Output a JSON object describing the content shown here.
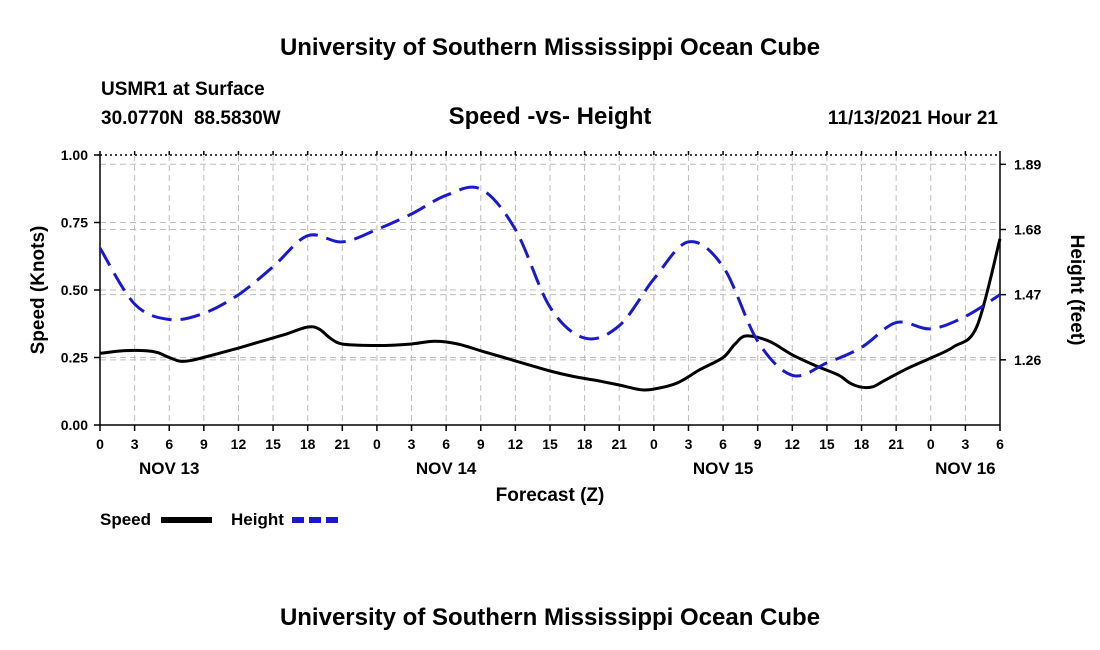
{
  "header": {
    "title": "University of Southern Mississippi Ocean Cube",
    "station": "USMR1 at Surface",
    "coords": "30.0770N  88.5830W",
    "subtitle": "Speed -vs- Height",
    "datetime": "11/13/2021 Hour 21"
  },
  "footer": {
    "title": "University of Southern Mississippi Ocean Cube"
  },
  "chart_data": {
    "type": "line",
    "title": "Speed -vs- Height",
    "xlabel": "Forecast (Z)",
    "ylabel_left": "Speed (Knots)",
    "ylabel_right": "Height (feet)",
    "x_hours_range": [
      0,
      78
    ],
    "x_tick_labels": [
      "0",
      "3",
      "6",
      "9",
      "12",
      "15",
      "18",
      "21",
      "0",
      "3",
      "6",
      "9",
      "12",
      "15",
      "18",
      "21",
      "0",
      "3",
      "6",
      "9",
      "12",
      "15",
      "18",
      "21",
      "0",
      "3",
      "6"
    ],
    "day_labels": [
      {
        "label": "NOV 13",
        "hour": 6
      },
      {
        "label": "NOV 14",
        "hour": 30
      },
      {
        "label": "NOV 15",
        "hour": 54
      },
      {
        "label": "NOV 16",
        "hour": 75
      }
    ],
    "left_axis": {
      "range": [
        0,
        1.0
      ],
      "ticks": [
        0.0,
        0.25,
        0.5,
        0.75,
        1.0
      ],
      "tick_labels": [
        "0.00",
        "0.25",
        "0.50",
        "0.75",
        "1.00"
      ]
    },
    "right_axis": {
      "range": [
        1.05,
        1.92
      ],
      "ticks": [
        1.26,
        1.47,
        1.68,
        1.89
      ],
      "tick_labels": [
        "1.26",
        "1.47",
        "1.68",
        "1.89"
      ]
    },
    "grid": true,
    "legend": [
      {
        "name": "Speed",
        "color": "#000000",
        "dash": "solid"
      },
      {
        "name": "Height",
        "color": "#1a1acc",
        "dash": "dashed"
      }
    ],
    "series": [
      {
        "name": "Speed",
        "axis": "left",
        "color": "#000000",
        "x": [
          0,
          2,
          4,
          5,
          6,
          7,
          8,
          10,
          12,
          14,
          16,
          18,
          19,
          20,
          21,
          23,
          25,
          27,
          29,
          31,
          33,
          35,
          37,
          39,
          41,
          43,
          45,
          46,
          47,
          48,
          50,
          52,
          54,
          55,
          56,
          58,
          60,
          62,
          64,
          65,
          66,
          67,
          68,
          70,
          72,
          74,
          76,
          78
        ],
        "values": [
          0.265,
          0.275,
          0.275,
          0.268,
          0.25,
          0.236,
          0.24,
          0.262,
          0.285,
          0.31,
          0.335,
          0.363,
          0.355,
          0.32,
          0.3,
          0.295,
          0.295,
          0.3,
          0.31,
          0.3,
          0.275,
          0.25,
          0.225,
          0.2,
          0.18,
          0.165,
          0.148,
          0.138,
          0.13,
          0.133,
          0.155,
          0.205,
          0.25,
          0.298,
          0.33,
          0.31,
          0.26,
          0.22,
          0.185,
          0.155,
          0.14,
          0.142,
          0.165,
          0.21,
          0.248,
          0.29,
          0.365,
          0.69
        ]
      },
      {
        "name": "Height",
        "axis": "right",
        "color": "#1a1acc",
        "x": [
          0,
          3,
          6,
          9,
          12,
          15,
          18,
          21,
          24,
          27,
          30,
          33,
          36,
          39,
          42,
          45,
          48,
          51,
          54,
          57,
          60,
          63,
          66,
          69,
          72,
          75,
          78
        ],
        "values": [
          1.62,
          1.44,
          1.39,
          1.41,
          1.47,
          1.56,
          1.66,
          1.64,
          1.68,
          1.73,
          1.79,
          1.81,
          1.68,
          1.43,
          1.33,
          1.37,
          1.52,
          1.64,
          1.56,
          1.32,
          1.21,
          1.25,
          1.3,
          1.38,
          1.36,
          1.4,
          1.47
        ]
      }
    ]
  }
}
